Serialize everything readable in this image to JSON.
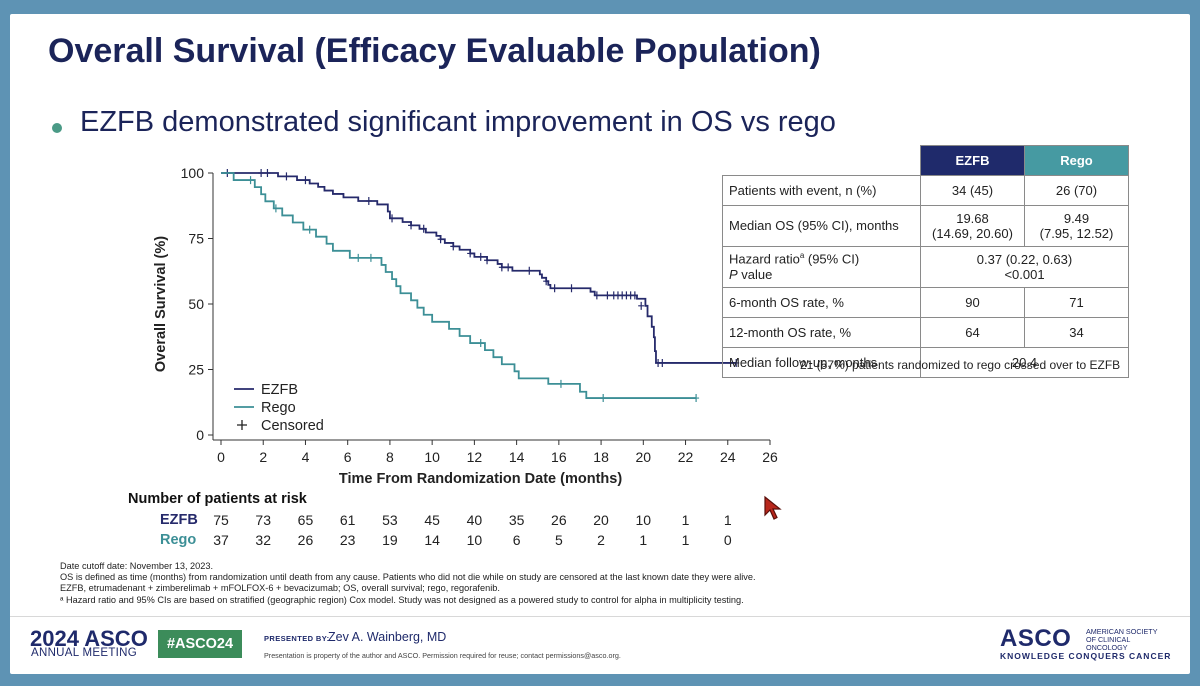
{
  "slide": {
    "title": "Overall Survival (Efficacy Evaluable Population)",
    "bullet": "EZFB demonstrated significant improvement in OS vs rego"
  },
  "chart_data": {
    "type": "line",
    "subtype": "kaplan-meier",
    "xlabel": "Time From Randomization Date (months)",
    "ylabel": "Overall Survival (%)",
    "xlim": [
      0,
      26
    ],
    "ylim": [
      0,
      100
    ],
    "xticks": [
      0,
      2,
      4,
      6,
      8,
      10,
      12,
      14,
      16,
      18,
      20,
      22,
      24,
      26
    ],
    "yticks": [
      0,
      25,
      50,
      75,
      100
    ],
    "legend": {
      "position": "bottom-left",
      "entries": [
        "EZFB",
        "Rego",
        "Censored"
      ],
      "censored_symbol": "+"
    },
    "series": [
      {
        "name": "EZFB",
        "color": "#262a6b",
        "steps": [
          [
            0,
            100
          ],
          [
            2.7,
            98.7
          ],
          [
            3.6,
            97.3
          ],
          [
            4.2,
            96
          ],
          [
            4.6,
            94.7
          ],
          [
            4.9,
            93.3
          ],
          [
            5.3,
            92
          ],
          [
            5.8,
            90.7
          ],
          [
            6.5,
            89.3
          ],
          [
            7.4,
            88
          ],
          [
            7.9,
            86.7
          ],
          [
            7.9,
            85.3
          ],
          [
            8,
            84
          ],
          [
            8,
            82.7
          ],
          [
            8.6,
            81.3
          ],
          [
            9,
            80
          ],
          [
            9.4,
            78.7
          ],
          [
            9.7,
            77.3
          ],
          [
            10.2,
            76
          ],
          [
            10.4,
            74.7
          ],
          [
            10.6,
            73.3
          ],
          [
            11,
            72
          ],
          [
            11.3,
            70.7
          ],
          [
            11.8,
            69.3
          ],
          [
            12,
            68
          ],
          [
            12.6,
            66.7
          ],
          [
            13.1,
            65.3
          ],
          [
            13.3,
            64
          ],
          [
            13.8,
            62.7
          ],
          [
            15.1,
            61.3
          ],
          [
            15.2,
            60
          ],
          [
            15.4,
            58.7
          ],
          [
            15.5,
            57.3
          ],
          [
            15.6,
            56
          ],
          [
            17.5,
            54.7
          ],
          [
            17.7,
            53.3
          ],
          [
            19.7,
            52
          ],
          [
            20.1,
            49.3
          ],
          [
            20.2,
            45.3
          ],
          [
            20.4,
            41.3
          ],
          [
            20.5,
            37.3
          ],
          [
            20.55,
            32
          ],
          [
            20.6,
            27.5
          ]
        ],
        "end_x": 24.4,
        "censored": [
          [
            0.3,
            100
          ],
          [
            1.9,
            100
          ],
          [
            2.2,
            100
          ],
          [
            3.1,
            98.7
          ],
          [
            4.0,
            97.3
          ],
          [
            7.0,
            89.3
          ],
          [
            8.1,
            82.7
          ],
          [
            9.0,
            80
          ],
          [
            9.6,
            78.7
          ],
          [
            10.4,
            74.7
          ],
          [
            11.0,
            72
          ],
          [
            11.8,
            69.3
          ],
          [
            12.3,
            68
          ],
          [
            12.6,
            66.7
          ],
          [
            13.3,
            64
          ],
          [
            13.6,
            64
          ],
          [
            14.6,
            62.7
          ],
          [
            15.4,
            58.7
          ],
          [
            15.8,
            56
          ],
          [
            16.6,
            56
          ],
          [
            17.8,
            53.3
          ],
          [
            18.3,
            53.3
          ],
          [
            18.6,
            53.3
          ],
          [
            18.8,
            53.3
          ],
          [
            19.0,
            53.3
          ],
          [
            19.2,
            53.3
          ],
          [
            19.4,
            53.3
          ],
          [
            19.6,
            53.3
          ],
          [
            19.9,
            49.3
          ],
          [
            20.7,
            27.5
          ],
          [
            20.9,
            27.5
          ],
          [
            24.4,
            27.5
          ]
        ]
      },
      {
        "name": "Rego",
        "color": "#3c8f96",
        "steps": [
          [
            0,
            100
          ],
          [
            0.6,
            97.3
          ],
          [
            1.6,
            94.6
          ],
          [
            1.9,
            91.9
          ],
          [
            2.1,
            89.2
          ],
          [
            2.5,
            86.5
          ],
          [
            2.9,
            83.8
          ],
          [
            3.4,
            81.1
          ],
          [
            3.9,
            78.4
          ],
          [
            4.5,
            75.7
          ],
          [
            5.0,
            73
          ],
          [
            5.3,
            70.3
          ],
          [
            6.1,
            67.6
          ],
          [
            7.6,
            64.9
          ],
          [
            7.8,
            62.2
          ],
          [
            8.1,
            59.5
          ],
          [
            8.3,
            56.8
          ],
          [
            8.5,
            54.1
          ],
          [
            9.0,
            51.4
          ],
          [
            9.3,
            48.6
          ],
          [
            9.6,
            45.9
          ],
          [
            10.0,
            43.2
          ],
          [
            10.8,
            40.5
          ],
          [
            11.3,
            37.8
          ],
          [
            11.8,
            35.1
          ],
          [
            12.5,
            32.4
          ],
          [
            12.9,
            29.7
          ],
          [
            13.3,
            27
          ],
          [
            13.9,
            24.3
          ],
          [
            14.1,
            21.6
          ],
          [
            15.5,
            19.5
          ],
          [
            17.0,
            16.5
          ],
          [
            17.3,
            14.1
          ]
        ],
        "end_x": 22.5,
        "censored": [
          [
            1.4,
            97.3
          ],
          [
            2.6,
            86.5
          ],
          [
            4.2,
            78.4
          ],
          [
            6.5,
            67.6
          ],
          [
            7.1,
            67.6
          ],
          [
            12.3,
            35.1
          ],
          [
            16.1,
            19.5
          ],
          [
            18.1,
            14.1
          ],
          [
            22.5,
            14.1
          ]
        ]
      }
    ],
    "at_risk": {
      "title": "Number of patients at risk",
      "times": [
        0,
        2,
        4,
        6,
        8,
        10,
        12,
        14,
        16,
        18,
        20,
        22,
        24
      ],
      "rows": [
        {
          "label": "EZFB",
          "color": "#262a6b",
          "values": [
            "75",
            "73",
            "65",
            "61",
            "53",
            "45",
            "40",
            "35",
            "26",
            "20",
            "10",
            "1",
            "1"
          ]
        },
        {
          "label": "Rego",
          "color": "#3c8f96",
          "values": [
            "37",
            "32",
            "26",
            "23",
            "19",
            "14",
            "10",
            "6",
            "5",
            "2",
            "1",
            "1",
            "0"
          ]
        }
      ]
    }
  },
  "table": {
    "headers": [
      "EZFB",
      "Rego"
    ],
    "patients_label": "Patients with event, n (%)",
    "patients_ezfb": "34 (45)",
    "patients_rego": "26 (70)",
    "median_label": "Median OS (95% CI), months",
    "median_ezfb_1": "19.68",
    "median_ezfb_2": "(14.69, 20.60)",
    "median_rego_1": "9.49",
    "median_rego_2": "(7.95, 12.52)",
    "hr_label": "Hazard ratio",
    "hr_sup": "a",
    "hr_label_tail": " (95% CI)",
    "p_label": "P",
    "p_label_tail": " value",
    "hr_value": "0.37 (0.22, 0.63)",
    "p_value": "<0.001",
    "m6_label": "6-month OS rate, %",
    "m6_ezfb": "90",
    "m6_rego": "71",
    "m12_label": "12-month OS rate, %",
    "m12_ezfb": "64",
    "m12_rego": "34",
    "followup_label": "Median follow-up, months",
    "followup_value": "20.4",
    "crossover_note": "21 (57%) patients randomized to rego crossed over to EZFB"
  },
  "footnotes": {
    "line1": "Date cutoff date: November 13, 2023.",
    "line2": "OS is defined as time (months) from randomization until death from any cause. Patients who did not die while on study are censored at the last known date they were alive.",
    "line3": "EZFB, etrumadenant + zimberelimab + mFOLFOX-6 + bevacizumab; OS, overall survival; rego, regorafenib.",
    "line4": "ᵃ Hazard ratio and 95% CIs are based on stratified (geographic region) Cox model. Study was not designed as a powered study to control for alpha in multiplicity testing."
  },
  "footer": {
    "year": "2024",
    "asco": "ASCO",
    "meeting": "ANNUAL MEETING",
    "hashtag": "#ASCO24",
    "presented_by": "PRESENTED BY:",
    "presenter": "Zev A. Wainberg, MD",
    "property": "Presentation is property of the author and ASCO. Permission required for reuse; contact permissions@asco.org.",
    "logo": "ASCO",
    "logo_sub": "AMERICAN SOCIETY OF CLINICAL ONCOLOGY",
    "tagline": "KNOWLEDGE CONQUERS CANCER"
  },
  "colors": {
    "navy": "#1f2a6b",
    "teal": "#469aa2",
    "green": "#3c8c5a",
    "cursor": "#c0392b"
  }
}
